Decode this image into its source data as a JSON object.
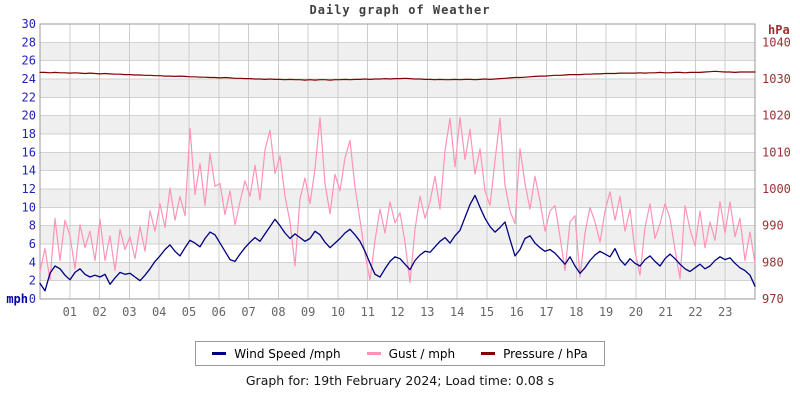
{
  "page": {
    "title": "Daily graph of Weather",
    "footer": "Graph for: 19th February 2024; Load time: 0.08 s"
  },
  "legend": {
    "items": [
      {
        "label": "Wind Speed /mph",
        "color": "#000080"
      },
      {
        "label": "Gust / mph",
        "color": "#ff93b8"
      },
      {
        "label": "Pressure / hPa",
        "color": "#800000"
      }
    ]
  },
  "colors": {
    "band_light": "#ffffff",
    "band_dark": "#efefef",
    "grid_h": "#d2d2d2",
    "grid_v": "#cccccc",
    "plot_border": "#999999",
    "left_axis_text": "#2222bb",
    "right_axis_text": "#993333",
    "x_axis_text": "#666666",
    "mph_label": "#0000aa",
    "hpa_label": "#993333"
  },
  "chart_data": {
    "type": "line",
    "title": "Daily graph of Weather",
    "grid": true,
    "legend_position": "bottom",
    "sample_interval_minutes": 10,
    "x_range_hours": [
      0,
      24
    ],
    "x_tick_labels": [
      "01",
      "02",
      "03",
      "04",
      "05",
      "06",
      "07",
      "08",
      "09",
      "10",
      "11",
      "12",
      "13",
      "14",
      "15",
      "16",
      "17",
      "18",
      "19",
      "20",
      "21",
      "22",
      "23"
    ],
    "y_axis_left": {
      "unit": "mph",
      "min": 0,
      "max": 30,
      "tick_step": 2,
      "ticks": [
        0,
        2,
        4,
        6,
        8,
        10,
        12,
        14,
        16,
        18,
        20,
        22,
        24,
        26,
        28,
        30
      ]
    },
    "y_axis_right": {
      "unit": "hPa",
      "min": 970,
      "max": 1040,
      "tick_step": 10,
      "ticks": [
        970,
        980,
        990,
        1000,
        1010,
        1020,
        1030,
        1040
      ],
      "mph_equiv_per_hpa": 0.4,
      "base_value": 970
    },
    "series": [
      {
        "name": "Wind Speed /mph",
        "axis": "left",
        "color": "#000080",
        "width": 1.3,
        "values": [
          1.7,
          0.9,
          2.8,
          3.6,
          3.3,
          2.6,
          2.1,
          2.9,
          3.3,
          2.7,
          2.4,
          2.6,
          2.4,
          2.7,
          1.6,
          2.3,
          2.9,
          2.7,
          2.8,
          2.4,
          2.0,
          2.6,
          3.3,
          4.1,
          4.7,
          5.4,
          5.9,
          5.2,
          4.7,
          5.6,
          6.4,
          6.1,
          5.7,
          6.6,
          7.3,
          7.0,
          6.1,
          5.2,
          4.3,
          4.1,
          4.9,
          5.6,
          6.2,
          6.7,
          6.3,
          7.1,
          7.9,
          8.7,
          8.0,
          7.2,
          6.6,
          7.1,
          6.7,
          6.3,
          6.6,
          7.4,
          7.0,
          6.2,
          5.6,
          6.1,
          6.6,
          7.2,
          7.6,
          7.0,
          6.3,
          5.2,
          3.9,
          2.7,
          2.4,
          3.3,
          4.1,
          4.6,
          4.4,
          3.8,
          3.2,
          4.2,
          4.8,
          5.2,
          5.1,
          5.7,
          6.3,
          6.7,
          6.1,
          6.9,
          7.5,
          8.9,
          10.3,
          11.3,
          10.0,
          8.8,
          7.9,
          7.3,
          7.8,
          8.4,
          6.5,
          4.7,
          5.4,
          6.6,
          6.9,
          6.1,
          5.6,
          5.2,
          5.4,
          5.0,
          4.4,
          3.8,
          4.6,
          3.6,
          2.8,
          3.4,
          4.2,
          4.8,
          5.2,
          4.9,
          4.6,
          5.5,
          4.3,
          3.7,
          4.4,
          3.9,
          3.6,
          4.3,
          4.7,
          4.1,
          3.6,
          4.4,
          4.9,
          4.4,
          3.8,
          3.3,
          3.0,
          3.4,
          3.8,
          3.3,
          3.6,
          4.2,
          4.6,
          4.3,
          4.5,
          3.9,
          3.4,
          3.1,
          2.6,
          1.4
        ]
      },
      {
        "name": "Gust / mph",
        "axis": "left",
        "color": "#ff93b8",
        "width": 1.2,
        "values": [
          3.0,
          5.5,
          2.1,
          8.8,
          4.2,
          8.6,
          6.9,
          3.3,
          8.1,
          5.6,
          7.4,
          4.2,
          8.7,
          4.2,
          6.9,
          3.1,
          7.6,
          5.4,
          6.8,
          4.4,
          7.9,
          5.2,
          9.6,
          7.4,
          10.4,
          7.8,
          12.1,
          8.6,
          11.2,
          9.1,
          18.6,
          11.4,
          14.8,
          10.2,
          15.9,
          12.3,
          12.6,
          9.2,
          11.8,
          8.1,
          10.6,
          12.9,
          11.2,
          14.6,
          10.8,
          16.3,
          18.4,
          13.7,
          15.6,
          11.2,
          8.4,
          3.6,
          10.9,
          13.2,
          10.4,
          14.2,
          19.8,
          12.6,
          9.3,
          13.6,
          11.8,
          15.4,
          17.3,
          12.2,
          8.6,
          4.9,
          2.1,
          6.4,
          9.8,
          7.2,
          10.6,
          8.3,
          9.4,
          6.2,
          1.8,
          7.6,
          11.2,
          8.8,
          10.6,
          13.4,
          9.8,
          16.2,
          19.7,
          14.4,
          19.8,
          15.2,
          18.5,
          13.6,
          16.4,
          11.8,
          10.2,
          15.1,
          19.7,
          12.4,
          9.6,
          8.2,
          16.4,
          12.6,
          9.8,
          13.4,
          10.7,
          7.4,
          9.6,
          10.2,
          6.8,
          3.1,
          8.4,
          9.1,
          2.4,
          7.2,
          10.0,
          8.4,
          6.2,
          9.6,
          11.7,
          8.6,
          11.2,
          7.4,
          9.8,
          5.2,
          2.6,
          7.8,
          10.4,
          6.6,
          8.2,
          10.4,
          8.8,
          5.4,
          2.2,
          10.2,
          7.6,
          5.8,
          9.6,
          5.6,
          8.4,
          6.4,
          10.6,
          7.2,
          10.6,
          6.8,
          8.8,
          4.2,
          7.3,
          3.9
        ]
      },
      {
        "name": "Pressure / hPa",
        "axis": "right",
        "color": "#800000",
        "width": 1.2,
        "values": [
          1031.8,
          1031.8,
          1031.7,
          1031.8,
          1031.7,
          1031.7,
          1031.6,
          1031.7,
          1031.6,
          1031.5,
          1031.6,
          1031.5,
          1031.4,
          1031.5,
          1031.4,
          1031.3,
          1031.3,
          1031.2,
          1031.2,
          1031.1,
          1031.1,
          1031.0,
          1031.0,
          1030.9,
          1030.9,
          1030.8,
          1030.8,
          1030.7,
          1030.8,
          1030.7,
          1030.6,
          1030.6,
          1030.5,
          1030.5,
          1030.4,
          1030.4,
          1030.3,
          1030.4,
          1030.3,
          1030.2,
          1030.2,
          1030.1,
          1030.1,
          1030.0,
          1030.0,
          1029.9,
          1030.0,
          1029.9,
          1029.9,
          1029.8,
          1029.9,
          1029.8,
          1029.8,
          1029.7,
          1029.8,
          1029.7,
          1029.8,
          1029.8,
          1029.7,
          1029.8,
          1029.8,
          1029.9,
          1029.8,
          1029.9,
          1029.9,
          1030.0,
          1029.9,
          1030.0,
          1030.0,
          1030.1,
          1030.0,
          1030.1,
          1030.1,
          1030.2,
          1030.1,
          1030.0,
          1030.0,
          1029.9,
          1029.9,
          1029.8,
          1029.9,
          1029.8,
          1029.8,
          1029.9,
          1029.8,
          1029.9,
          1029.9,
          1029.8,
          1029.9,
          1030.0,
          1029.9,
          1030.0,
          1030.1,
          1030.2,
          1030.3,
          1030.4,
          1030.4,
          1030.5,
          1030.6,
          1030.7,
          1030.8,
          1030.8,
          1030.9,
          1031.0,
          1031.0,
          1031.1,
          1031.2,
          1031.2,
          1031.2,
          1031.3,
          1031.3,
          1031.4,
          1031.4,
          1031.5,
          1031.5,
          1031.5,
          1031.6,
          1031.6,
          1031.6,
          1031.6,
          1031.7,
          1031.6,
          1031.7,
          1031.7,
          1031.8,
          1031.7,
          1031.7,
          1031.8,
          1031.8,
          1031.7,
          1031.8,
          1031.8,
          1031.8,
          1031.9,
          1032.0,
          1032.1,
          1032.0,
          1031.9,
          1031.9,
          1031.8,
          1031.9,
          1031.9,
          1031.9,
          1031.9
        ]
      }
    ]
  }
}
